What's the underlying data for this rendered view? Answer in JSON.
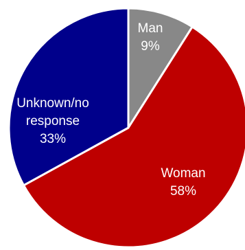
{
  "chart_data": {
    "type": "pie",
    "title": "",
    "slices": [
      {
        "label_lines": [
          "Man",
          "9%"
        ],
        "value": 9,
        "color": "#888888"
      },
      {
        "label_lines": [
          "Woman",
          "58%"
        ],
        "value": 58,
        "color": "#BE0000"
      },
      {
        "label_lines": [
          "Unknown/no",
          "response",
          "33%"
        ],
        "value": 33,
        "color": "#00008B"
      }
    ],
    "start_angle_deg": 0,
    "direction": "clockwise",
    "border_color": "#ffffff",
    "legend": "none"
  }
}
